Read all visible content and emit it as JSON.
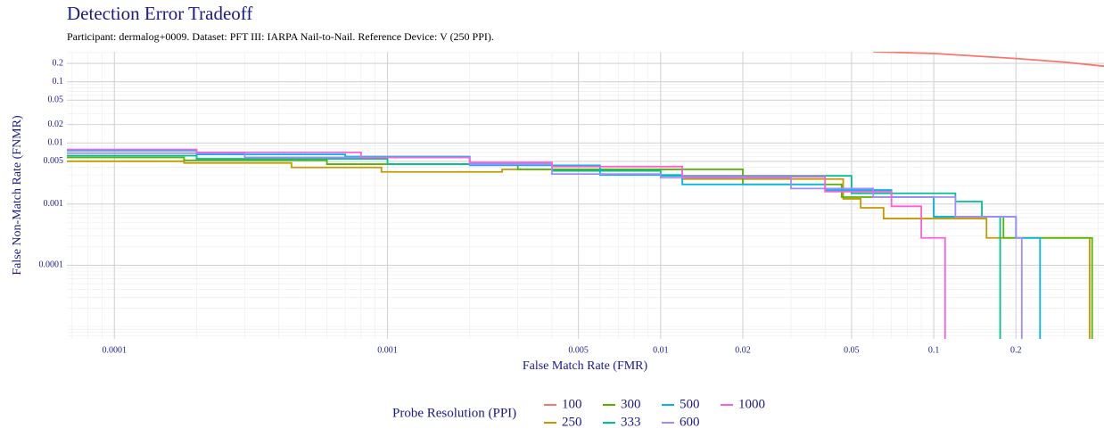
{
  "chart_data": {
    "type": "line",
    "step": true,
    "title": "Detection Error Tradeoff",
    "subtitle": "Participant: dermalog+0009. Dataset: PFT III: IARPA Nail-to-Nail. Reference Device: V (250 PPI).",
    "x_label": "False Match Rate (FMR)",
    "y_label": "False Non-Match Rate (FNMR)",
    "log_x": true,
    "log_y": true,
    "grid": true,
    "minor_grid": true,
    "legend_title": "Probe Resolution (PPI)",
    "legend_position": "bottom",
    "xlim": [
      6.7e-05,
      0.42
    ],
    "ylim": [
      6.25e-06,
      0.31
    ],
    "xticks": [
      0.0001,
      0.001,
      0.005,
      0.01,
      0.02,
      0.05,
      0.1,
      0.2
    ],
    "yticks": [
      0.0001,
      0.001,
      0.005,
      0.01,
      0.02,
      0.05,
      0.1,
      0.2
    ],
    "series": [
      {
        "name": "100",
        "color": "#F8766D",
        "step": false,
        "x": [
          0.06,
          0.1,
          0.15,
          0.2,
          0.3,
          0.42
        ],
        "values": [
          0.31,
          0.29,
          0.26,
          0.24,
          0.21,
          0.18
        ]
      },
      {
        "name": "250",
        "color": "#C49A00",
        "x": [
          6.7e-05,
          0.00018,
          0.000445,
          0.00095,
          0.00263,
          0.012,
          0.0466,
          0.054,
          0.0655,
          0.092,
          0.156,
          0.372,
          0.372
        ],
        "values": [
          0.00502,
          0.0047,
          0.00397,
          0.00336,
          0.0037,
          0.00257,
          0.00122,
          0.00087,
          0.00058,
          0.00058,
          0.00028,
          0.00028,
          6.25e-06
        ]
      },
      {
        "name": "300",
        "color": "#53B400",
        "x": [
          6.7e-05,
          0.00018,
          0.0006,
          0.003,
          0.02,
          0.046,
          0.1,
          0.18,
          0.38,
          0.38
        ],
        "values": [
          0.0058,
          0.0052,
          0.0045,
          0.0037,
          0.0021,
          0.0013,
          0.00062,
          0.00028,
          0.00028,
          6.25e-06
        ]
      },
      {
        "name": "333",
        "color": "#00C094",
        "x": [
          6.7e-05,
          0.0002,
          0.001,
          0.004,
          0.01,
          0.05,
          0.12,
          0.15,
          0.175,
          0.175
        ],
        "values": [
          0.0062,
          0.0055,
          0.0045,
          0.0035,
          0.0029,
          0.0015,
          0.0011,
          0.00062,
          0.00028,
          6.25e-06
        ]
      },
      {
        "name": "500",
        "color": "#00B6EB",
        "x": [
          6.7e-05,
          0.0002,
          0.0007,
          0.002,
          0.006,
          0.012,
          0.04,
          0.07,
          0.1,
          0.2,
          0.245,
          0.245
        ],
        "values": [
          0.0075,
          0.0065,
          0.006,
          0.0043,
          0.003,
          0.0021,
          0.0017,
          0.0013,
          0.00062,
          0.00028,
          0.00028,
          6.25e-06
        ]
      },
      {
        "name": "600",
        "color": "#A58AFF",
        "x": [
          6.7e-05,
          0.0003,
          0.002,
          0.004,
          0.01,
          0.03,
          0.06,
          0.12,
          0.2,
          0.21,
          0.21
        ],
        "values": [
          0.0068,
          0.0058,
          0.0045,
          0.0031,
          0.0027,
          0.0018,
          0.0013,
          0.00062,
          0.00028,
          0.00028,
          6.25e-06
        ]
      },
      {
        "name": "1000",
        "color": "#FB61D7",
        "x": [
          6.7e-05,
          0.0002,
          0.0008,
          0.002,
          0.004,
          0.012,
          0.04,
          0.07,
          0.09,
          0.11,
          0.11
        ],
        "values": [
          0.0078,
          0.007,
          0.0058,
          0.0048,
          0.0041,
          0.0028,
          0.0016,
          0.00092,
          0.00028,
          0.00028,
          6.25e-06
        ]
      }
    ]
  }
}
